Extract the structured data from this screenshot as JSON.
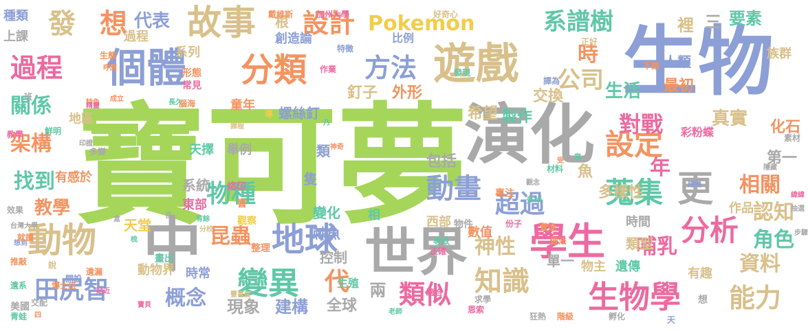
{
  "colors": {
    "green": "#a5d65a",
    "gray": "#a9a9a9",
    "blue": "#8c9fd6",
    "pink": "#ec6aa0",
    "orange": "#f4935f",
    "tan": "#d9c08a",
    "teal": "#5fc8a6",
    "yellow": "#f1cd4b"
  },
  "words": [
    "寶可夢",
    "生物",
    "演化",
    "中",
    "世界",
    "遊戲",
    "學生",
    "個體",
    "分類",
    "故事",
    "動物",
    "更",
    "地球",
    "變異",
    "生物學",
    "設定",
    "分析",
    "蒐集",
    "動畫",
    "知識",
    "類似",
    "過程",
    "田尻智",
    "想",
    "發",
    "設計",
    "Pokemon",
    "系譜樹",
    "方法",
    "公司",
    "時",
    "對戰",
    "年",
    "超過",
    "物種",
    "代",
    "能力",
    "相關",
    "資料",
    "認知",
    "角色",
    "哺乳",
    "昆蟲",
    "概念",
    "神性",
    "架構",
    "關係",
    "找到",
    "教學",
    "現象",
    "建構",
    "全球",
    "兩",
    "代表",
    "根",
    "三",
    "要素",
    "裡",
    "真實",
    "人類",
    "族群",
    "最初",
    "生活",
    "螺絲釘",
    "製作",
    "希望",
    "外形",
    "釘子",
    "交換",
    "魚",
    "多樣性",
    "作品",
    "第一",
    "化石",
    "彩粉蝶",
    "包括",
    "類",
    "隻",
    "變化",
    "棘魚",
    "控制",
    "生殖",
    "相",
    "系統",
    "東部",
    "天擇",
    "舉例",
    "西部",
    "數值",
    "時間",
    "類型",
    "單一",
    "有趣",
    "遺傳",
    "物主",
    "天堂",
    "動物界",
    "時常",
    "種類",
    "上課",
    "過程",
    "創造論",
    "比例",
    "地區",
    "童年",
    "系列",
    "形態",
    "常見",
    "腦海",
    "有感於",
    "教學",
    "鮮明",
    "印證",
    "多變",
    "效果",
    "台灣大學",
    "想到",
    "推敲",
    "就讀",
    "遺系",
    "青蛙",
    "美國",
    "交配",
    "四",
    "博士班",
    "說",
    "開設",
    "遺漏",
    "貼近",
    "寶貝",
    "老師",
    "恩索",
    "求學",
    "狂熱",
    "階級",
    "孵化",
    "想",
    "天",
    "觀念",
    "份子",
    "實迷",
    "戴維斯",
    "加州大學",
    "好奇心",
    "正好",
    "不錯",
    "素材",
    "隱藏",
    "隨機",
    "抽選",
    "步驟",
    "緯緯",
    "寫",
    "受",
    "譯為",
    "特徵",
    "作業",
    "整理",
    "觀察",
    "書",
    "烙印",
    "畫出",
    "導致",
    "正確",
    "適合",
    "專注",
    "做法",
    "多半",
    "發現",
    "材料",
    "物件",
    "生態",
    "呼應",
    "特色",
    "班",
    "成立",
    "精靈",
    "長久",
    "課程",
    "神奇",
    "豐富度",
    "盒",
    "梳",
    "百",
    "分校",
    "有餘",
    "導",
    "乃",
    "整",
    "抽"
  ]
}
